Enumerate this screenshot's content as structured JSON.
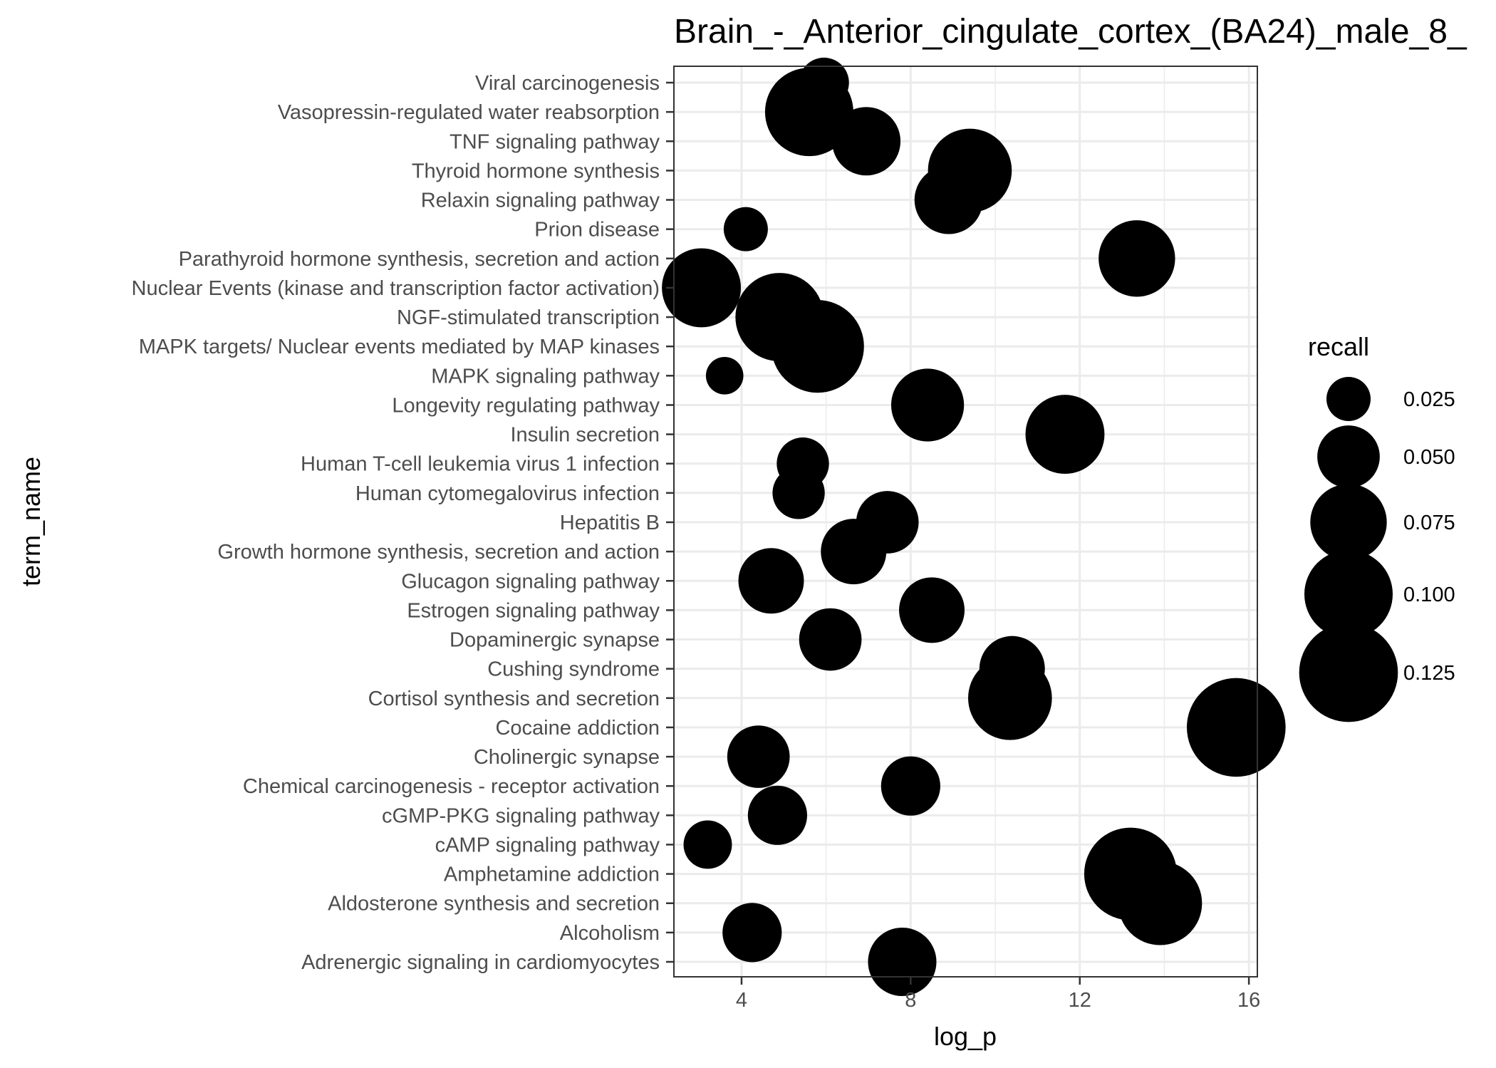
{
  "chart_data": {
    "type": "scatter",
    "title": "Brain_-_Anterior_cingulate_cortex_(BA24)_male_8_",
    "xlabel": "log_p",
    "ylabel": "term_name",
    "xlim": [
      2.4,
      16.2
    ],
    "x_ticks": [
      4,
      8,
      12,
      16
    ],
    "grid": true,
    "size_legend": {
      "title": "recall",
      "position": "right",
      "breaks": [
        0.025,
        0.05,
        0.075,
        0.1,
        0.125
      ],
      "labels": [
        "0.025",
        "0.050",
        "0.075",
        "0.100",
        "0.125"
      ]
    },
    "points": [
      {
        "term": "Viral carcinogenesis",
        "log_p": 5.95,
        "recall": 0.032
      },
      {
        "term": "Vasopressin-regulated water reabsorption",
        "log_p": 5.6,
        "recall": 0.1
      },
      {
        "term": "TNF signaling pathway",
        "log_p": 6.95,
        "recall": 0.06
      },
      {
        "term": "Thyroid hormone synthesis",
        "log_p": 9.4,
        "recall": 0.09
      },
      {
        "term": "Relaxin signaling pathway",
        "log_p": 8.9,
        "recall": 0.06
      },
      {
        "term": "Prion disease",
        "log_p": 4.1,
        "recall": 0.025
      },
      {
        "term": "Parathyroid hormone synthesis, secretion and action",
        "log_p": 13.35,
        "recall": 0.075
      },
      {
        "term": "Nuclear Events (kinase and transcription factor activation)",
        "log_p": 3.05,
        "recall": 0.08
      },
      {
        "term": "NGF-stimulated transcription",
        "log_p": 4.9,
        "recall": 0.1
      },
      {
        "term": "MAPK targets/ Nuclear events mediated by MAP kinases",
        "log_p": 5.8,
        "recall": 0.11
      },
      {
        "term": "MAPK signaling pathway",
        "log_p": 3.6,
        "recall": 0.018
      },
      {
        "term": "Longevity regulating pathway",
        "log_p": 8.4,
        "recall": 0.068
      },
      {
        "term": "Insulin secretion",
        "log_p": 11.65,
        "recall": 0.08
      },
      {
        "term": "Human T-cell leukemia virus 1 infection",
        "log_p": 5.45,
        "recall": 0.035
      },
      {
        "term": "Human cytomegalovirus infection",
        "log_p": 5.35,
        "recall": 0.035
      },
      {
        "term": "Hepatitis B",
        "log_p": 7.45,
        "recall": 0.05
      },
      {
        "term": "Growth hormone synthesis, secretion and action",
        "log_p": 6.65,
        "recall": 0.055
      },
      {
        "term": "Glucagon signaling pathway",
        "log_p": 4.7,
        "recall": 0.055
      },
      {
        "term": "Estrogen signaling pathway",
        "log_p": 8.5,
        "recall": 0.055
      },
      {
        "term": "Dopaminergic synapse",
        "log_p": 6.1,
        "recall": 0.05
      },
      {
        "term": "Cushing syndrome",
        "log_p": 10.4,
        "recall": 0.055
      },
      {
        "term": "Cortisol synthesis and secretion",
        "log_p": 10.35,
        "recall": 0.09
      },
      {
        "term": "Cocaine addiction",
        "log_p": 15.7,
        "recall": 0.125
      },
      {
        "term": "Cholinergic synapse",
        "log_p": 4.4,
        "recall": 0.05
      },
      {
        "term": "Chemical carcinogenesis - receptor activation",
        "log_p": 8.0,
        "recall": 0.045
      },
      {
        "term": "cGMP-PKG signaling pathway",
        "log_p": 4.85,
        "recall": 0.045
      },
      {
        "term": "cAMP signaling pathway",
        "log_p": 3.2,
        "recall": 0.03
      },
      {
        "term": "Amphetamine addiction",
        "log_p": 13.2,
        "recall": 0.11
      },
      {
        "term": "Aldosterone synthesis and secretion",
        "log_p": 13.9,
        "recall": 0.09
      },
      {
        "term": "Alcoholism",
        "log_p": 4.25,
        "recall": 0.045
      },
      {
        "term": "Adrenergic signaling in cardiomyocytes",
        "log_p": 7.8,
        "recall": 0.06
      }
    ]
  }
}
